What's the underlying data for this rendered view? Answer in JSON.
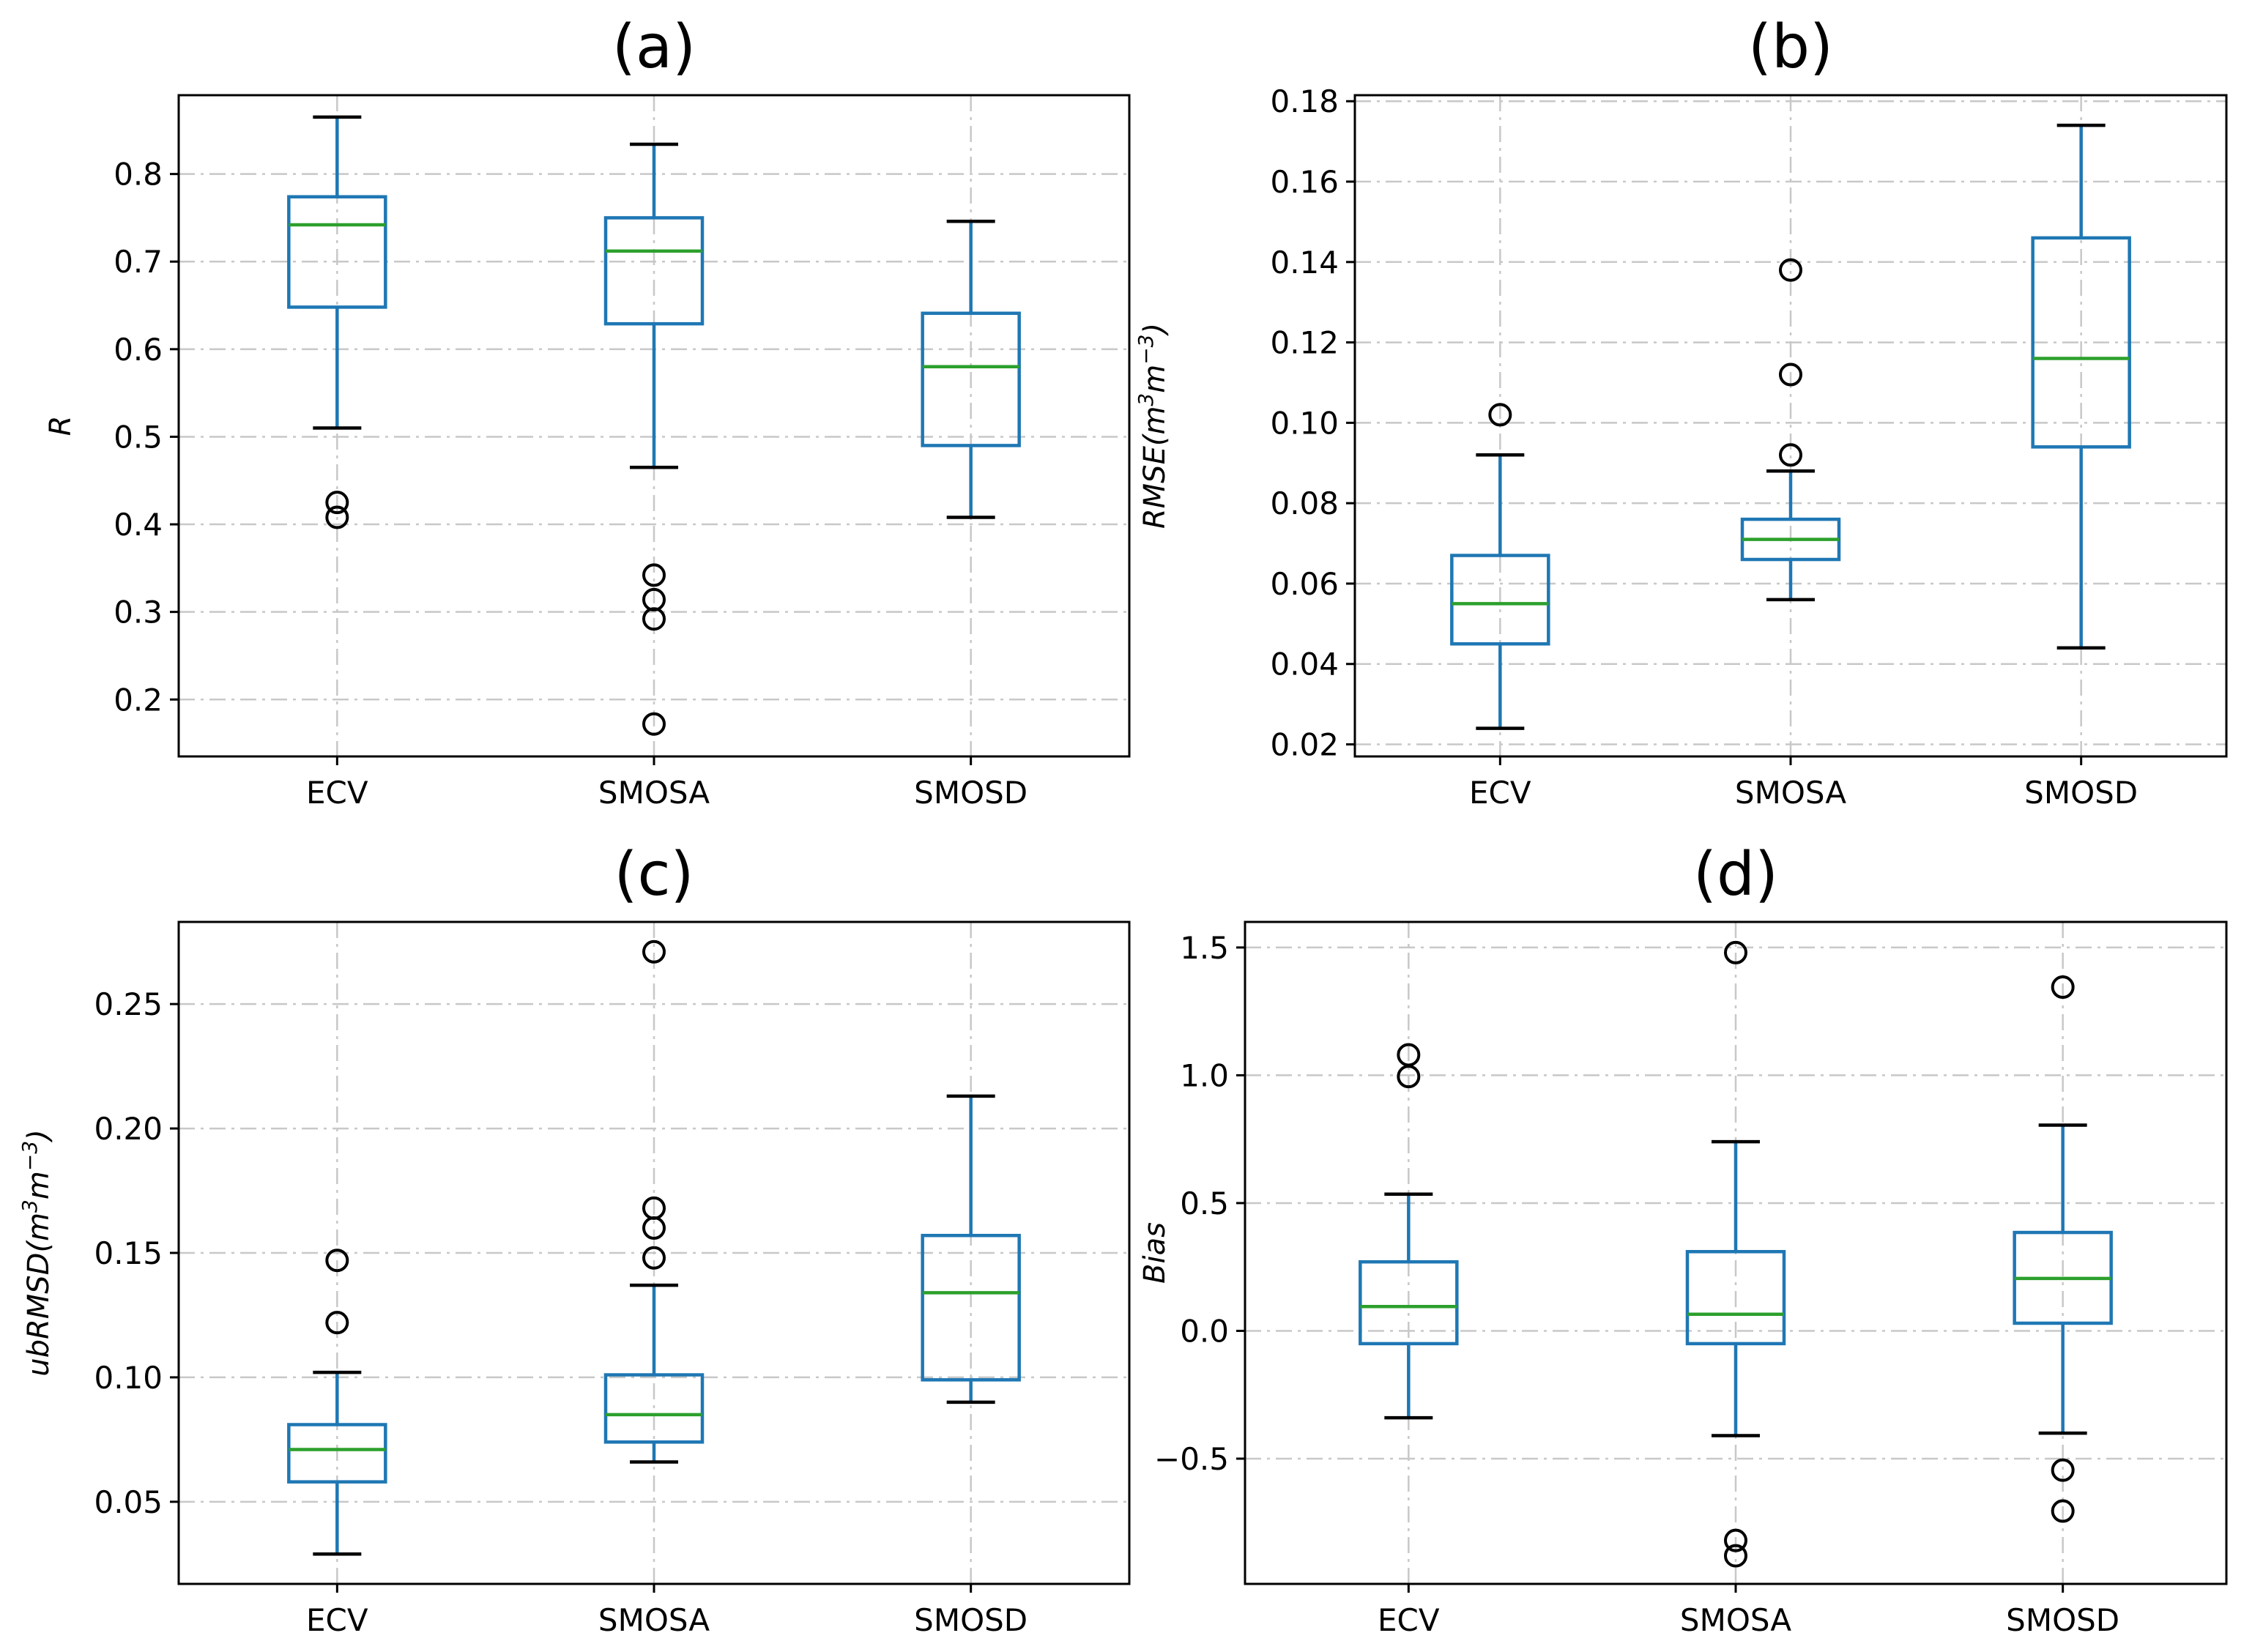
{
  "chart_data": [
    {
      "type": "boxplot",
      "title": "(a)",
      "ylabel": "R",
      "ylabel_sup": "",
      "ylabel_tail": "",
      "xlabel": "",
      "categories": [
        "ECV",
        "SMOSA",
        "SMOSD"
      ],
      "ylim": [
        0.135,
        0.89
      ],
      "yticks": [
        0.2,
        0.3,
        0.4,
        0.5,
        0.6,
        0.7,
        0.8
      ],
      "ytick_labels": [
        "0.2",
        "0.3",
        "0.4",
        "0.5",
        "0.6",
        "0.7",
        "0.8"
      ],
      "grid": true,
      "boxes": [
        {
          "name": "ECV",
          "whislo": 0.51,
          "q1": 0.648,
          "med": 0.742,
          "q3": 0.774,
          "whishi": 0.865,
          "fliers": [
            0.425,
            0.408
          ]
        },
        {
          "name": "SMOSA",
          "whislo": 0.465,
          "q1": 0.629,
          "med": 0.712,
          "q3": 0.75,
          "whishi": 0.834,
          "fliers": [
            0.342,
            0.314,
            0.292,
            0.172
          ]
        },
        {
          "name": "SMOSD",
          "whislo": 0.408,
          "q1": 0.49,
          "med": 0.58,
          "q3": 0.641,
          "whishi": 0.746,
          "fliers": []
        }
      ]
    },
    {
      "type": "boxplot",
      "title": "(b)",
      "ylabel": "RMSE(m",
      "ylabel_sup": "3",
      "ylabel_mid": "m",
      "ylabel_sup2": "−3",
      "ylabel_tail": ")",
      "xlabel": "",
      "categories": [
        "ECV",
        "SMOSA",
        "SMOSD"
      ],
      "ylim": [
        0.017,
        0.1815
      ],
      "yticks": [
        0.02,
        0.04,
        0.06,
        0.08,
        0.1,
        0.12,
        0.14,
        0.16,
        0.18
      ],
      "ytick_labels": [
        "0.02",
        "0.04",
        "0.06",
        "0.08",
        "0.10",
        "0.12",
        "0.14",
        "0.16",
        "0.18"
      ],
      "grid": true,
      "boxes": [
        {
          "name": "ECV",
          "whislo": 0.024,
          "q1": 0.045,
          "med": 0.055,
          "q3": 0.067,
          "whishi": 0.092,
          "fliers": [
            0.102
          ]
        },
        {
          "name": "SMOSA",
          "whislo": 0.056,
          "q1": 0.066,
          "med": 0.071,
          "q3": 0.076,
          "whishi": 0.088,
          "fliers": [
            0.138,
            0.112,
            0.092
          ]
        },
        {
          "name": "SMOSD",
          "whislo": 0.044,
          "q1": 0.094,
          "med": 0.116,
          "q3": 0.146,
          "whishi": 0.174,
          "fliers": []
        }
      ]
    },
    {
      "type": "boxplot",
      "title": "(c)",
      "ylabel": "ubRMSD(m",
      "ylabel_sup": "3",
      "ylabel_mid": "m",
      "ylabel_sup2": "−3",
      "ylabel_tail": ")",
      "xlabel": "",
      "categories": [
        "ECV",
        "SMOSA",
        "SMOSD"
      ],
      "ylim": [
        0.017,
        0.283
      ],
      "yticks": [
        0.05,
        0.1,
        0.15,
        0.2,
        0.25
      ],
      "ytick_labels": [
        "0.05",
        "0.10",
        "0.15",
        "0.20",
        "0.25"
      ],
      "grid": true,
      "boxes": [
        {
          "name": "ECV",
          "whislo": 0.029,
          "q1": 0.058,
          "med": 0.071,
          "q3": 0.081,
          "whishi": 0.102,
          "fliers": [
            0.147,
            0.122
          ]
        },
        {
          "name": "SMOSA",
          "whislo": 0.066,
          "q1": 0.074,
          "med": 0.085,
          "q3": 0.101,
          "whishi": 0.137,
          "fliers": [
            0.271,
            0.168,
            0.16,
            0.148
          ]
        },
        {
          "name": "SMOSD",
          "whislo": 0.09,
          "q1": 0.099,
          "med": 0.134,
          "q3": 0.157,
          "whishi": 0.213,
          "fliers": []
        }
      ]
    },
    {
      "type": "boxplot",
      "title": "(d)",
      "ylabel": "Bias",
      "ylabel_sup": "",
      "ylabel_tail": "",
      "xlabel": "",
      "categories": [
        "ECV",
        "SMOSA",
        "SMOSD"
      ],
      "ylim": [
        -0.99,
        1.6
      ],
      "yticks": [
        -0.5,
        0.0,
        0.5,
        1.0,
        1.5
      ],
      "ytick_labels": [
        "−0.5",
        "0.0",
        "0.5",
        "1.0",
        "1.5"
      ],
      "grid": true,
      "boxes": [
        {
          "name": "ECV",
          "whislo": -0.34,
          "q1": -0.05,
          "med": 0.095,
          "q3": 0.27,
          "whishi": 0.535,
          "fliers": [
            1.08,
            0.995
          ]
        },
        {
          "name": "SMOSA",
          "whislo": -0.41,
          "q1": -0.05,
          "med": 0.065,
          "q3": 0.31,
          "whishi": 0.74,
          "fliers": [
            1.48,
            -0.82,
            -0.88
          ]
        },
        {
          "name": "SMOSD",
          "whislo": -0.4,
          "q1": 0.03,
          "med": 0.205,
          "q3": 0.385,
          "whishi": 0.805,
          "fliers": [
            1.345,
            -0.545,
            -0.705
          ]
        }
      ]
    }
  ]
}
